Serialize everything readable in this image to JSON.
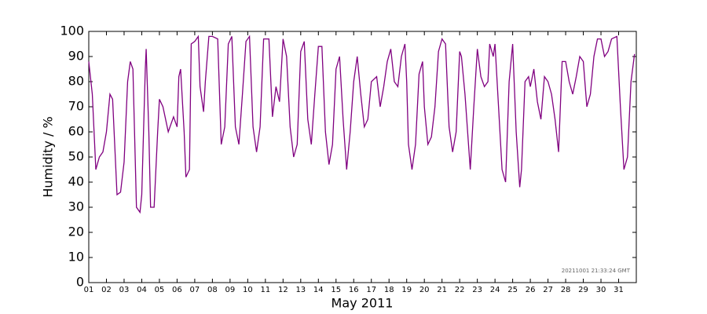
{
  "chart_data": {
    "type": "line",
    "xlabel": "May 2011",
    "ylabel": "Humidity / %",
    "annotation": "20211001 21:33:24 GMT",
    "color": "#800080",
    "x": [
      1.0,
      1.2,
      1.4,
      1.6,
      1.8,
      2.0,
      2.2,
      2.35,
      2.6,
      2.8,
      3.0,
      3.2,
      3.35,
      3.5,
      3.7,
      3.9,
      4.0,
      4.2,
      4.25,
      4.4,
      4.5,
      4.7,
      4.9,
      5.0,
      5.2,
      5.5,
      5.8,
      6.0,
      6.1,
      6.2,
      6.4,
      6.5,
      6.7,
      6.8,
      7.0,
      7.2,
      7.3,
      7.5,
      7.6,
      7.8,
      8.0,
      8.3,
      8.5,
      8.7,
      8.9,
      9.1,
      9.3,
      9.5,
      9.7,
      9.9,
      10.1,
      10.3,
      10.5,
      10.7,
      10.9,
      11.2,
      11.4,
      11.6,
      11.8,
      12.0,
      12.2,
      12.4,
      12.6,
      12.8,
      13.0,
      13.2,
      13.4,
      13.6,
      13.8,
      14.0,
      14.2,
      14.4,
      14.6,
      14.8,
      15.0,
      15.2,
      15.4,
      15.6,
      15.8,
      16.0,
      16.2,
      16.4,
      16.6,
      16.8,
      17.0,
      17.3,
      17.5,
      17.7,
      17.9,
      18.1,
      18.3,
      18.5,
      18.7,
      18.9,
      19.0,
      19.1,
      19.3,
      19.5,
      19.7,
      19.9,
      20.0,
      20.2,
      20.4,
      20.6,
      20.8,
      21.0,
      21.2,
      21.4,
      21.6,
      21.8,
      22.0,
      22.1,
      22.3,
      22.5,
      22.6,
      22.8,
      23.0,
      23.2,
      23.4,
      23.6,
      23.7,
      23.9,
      24.0,
      24.2,
      24.4,
      24.6,
      24.8,
      25.0,
      25.2,
      25.4,
      25.5,
      25.7,
      25.9,
      26.0,
      26.2,
      26.4,
      26.6,
      26.8,
      27.0,
      27.2,
      27.4,
      27.6,
      27.8,
      28.0,
      28.2,
      28.4,
      28.6,
      28.8,
      29.0,
      29.2,
      29.4,
      29.6,
      29.8,
      30.0,
      30.2,
      30.4,
      30.6,
      30.9,
      31.1,
      31.3,
      31.5,
      31.7,
      31.9
    ],
    "values": [
      88,
      75,
      45,
      50,
      52,
      60,
      75,
      73,
      35,
      36,
      48,
      80,
      88,
      85,
      30,
      28,
      35,
      85,
      93,
      60,
      30,
      30,
      60,
      73,
      70,
      60,
      66,
      62,
      82,
      85,
      60,
      42,
      45,
      95,
      96,
      98,
      78,
      68,
      80,
      98,
      98,
      97,
      55,
      62,
      95,
      98,
      62,
      55,
      75,
      96,
      98,
      62,
      52,
      62,
      97,
      97,
      66,
      78,
      72,
      97,
      90,
      62,
      50,
      55,
      92,
      96,
      65,
      55,
      75,
      94,
      94,
      60,
      47,
      55,
      85,
      90,
      65,
      45,
      60,
      80,
      90,
      75,
      62,
      65,
      80,
      82,
      70,
      78,
      88,
      93,
      80,
      78,
      90,
      95,
      80,
      55,
      45,
      55,
      83,
      88,
      70,
      55,
      58,
      70,
      92,
      97,
      95,
      62,
      52,
      60,
      92,
      90,
      75,
      55,
      45,
      70,
      93,
      82,
      78,
      80,
      95,
      90,
      95,
      70,
      45,
      40,
      80,
      95,
      60,
      38,
      45,
      80,
      82,
      78,
      85,
      72,
      65,
      82,
      80,
      75,
      65,
      52,
      88,
      88,
      80,
      75,
      82,
      90,
      88,
      70,
      75,
      90,
      97,
      97,
      90,
      92,
      97,
      98,
      70,
      45,
      50,
      80,
      91
    ],
    "xlim": [
      1,
      32
    ],
    "xticks": [
      {
        "value": 1,
        "label": "01"
      },
      {
        "value": 2,
        "label": "02"
      },
      {
        "value": 3,
        "label": "03"
      },
      {
        "value": 4,
        "label": "04"
      },
      {
        "value": 5,
        "label": "05"
      },
      {
        "value": 6,
        "label": "06"
      },
      {
        "value": 7,
        "label": "07"
      },
      {
        "value": 8,
        "label": "08"
      },
      {
        "value": 9,
        "label": "09"
      },
      10,
      11,
      12,
      13,
      14,
      15,
      16,
      17,
      18,
      19,
      20,
      21,
      22,
      23,
      24,
      25,
      26,
      27,
      28,
      29,
      30,
      31
    ],
    "ylim": [
      0,
      100
    ],
    "yticks": [
      0,
      10,
      20,
      30,
      40,
      50,
      60,
      70,
      80,
      90,
      100
    ],
    "grid": false
  }
}
